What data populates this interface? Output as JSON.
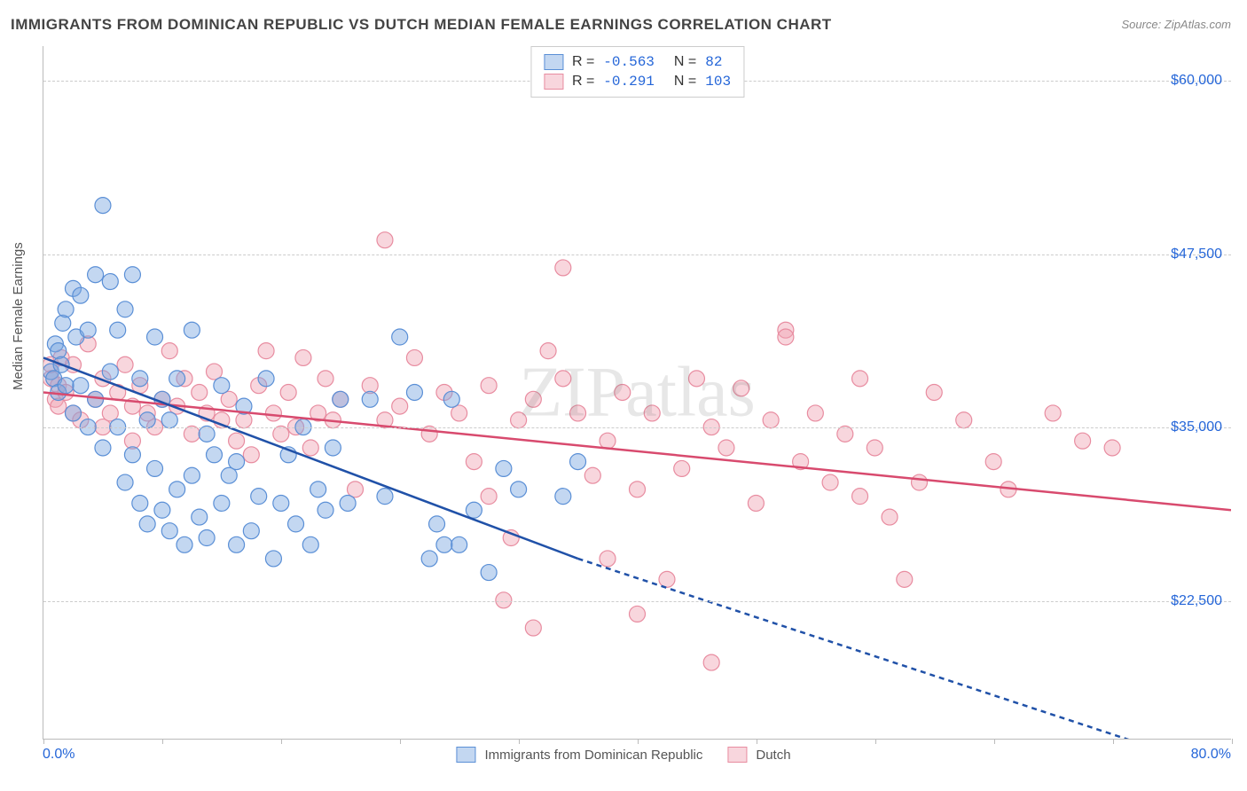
{
  "title": "IMMIGRANTS FROM DOMINICAN REPUBLIC VS DUTCH MEDIAN FEMALE EARNINGS CORRELATION CHART",
  "source": "Source: ZipAtlas.com",
  "y_axis_label": "Median Female Earnings",
  "watermark": "ZIPatlas",
  "chart": {
    "type": "scatter",
    "xlim": [
      0,
      80
    ],
    "ylim": [
      12500,
      62500
    ],
    "y_ticks": [
      22500,
      35000,
      47500,
      60000
    ],
    "y_tick_labels": [
      "$22,500",
      "$35,000",
      "$47,500",
      "$60,000"
    ],
    "x_ticks": [
      0,
      8,
      16,
      24,
      32,
      40,
      48,
      56,
      64,
      72,
      80
    ],
    "x_min_label": "0.0%",
    "x_max_label": "80.0%",
    "background_color": "#ffffff",
    "grid_color": "#cccccc",
    "axis_color": "#bbbbbb",
    "marker_radius": 9,
    "marker_opacity": 0.55,
    "line_width": 2.5
  },
  "series": [
    {
      "name": "Immigrants from Dominican Republic",
      "color": "#7ba7e0",
      "fill": "rgba(123,167,224,0.45)",
      "stroke": "#5a8fd6",
      "line_color": "#2051a8",
      "R": "-0.563",
      "N": "82",
      "trend": {
        "x1": 0,
        "y1": 40000,
        "x2": 36,
        "y2": 25500,
        "x2_ext": 80,
        "y2_ext": 10000
      },
      "points": [
        [
          0.5,
          39000
        ],
        [
          0.7,
          38500
        ],
        [
          0.8,
          41000
        ],
        [
          1,
          37500
        ],
        [
          1,
          40500
        ],
        [
          1.2,
          39500
        ],
        [
          1.3,
          42500
        ],
        [
          1.5,
          38000
        ],
        [
          1.5,
          43500
        ],
        [
          2,
          45000
        ],
        [
          2,
          36000
        ],
        [
          2.2,
          41500
        ],
        [
          2.5,
          38000
        ],
        [
          2.5,
          44500
        ],
        [
          3,
          42000
        ],
        [
          3,
          35000
        ],
        [
          3.5,
          46000
        ],
        [
          3.5,
          37000
        ],
        [
          4,
          51000
        ],
        [
          4,
          33500
        ],
        [
          4.5,
          45500
        ],
        [
          4.5,
          39000
        ],
        [
          5,
          35000
        ],
        [
          5,
          42000
        ],
        [
          5.5,
          31000
        ],
        [
          5.5,
          43500
        ],
        [
          6,
          33000
        ],
        [
          6,
          46000
        ],
        [
          6.5,
          29500
        ],
        [
          6.5,
          38500
        ],
        [
          7,
          28000
        ],
        [
          7,
          35500
        ],
        [
          7.5,
          32000
        ],
        [
          7.5,
          41500
        ],
        [
          8,
          29000
        ],
        [
          8,
          37000
        ],
        [
          8.5,
          35500
        ],
        [
          8.5,
          27500
        ],
        [
          9,
          30500
        ],
        [
          9,
          38500
        ],
        [
          9.5,
          26500
        ],
        [
          10,
          31500
        ],
        [
          10,
          42000
        ],
        [
          10.5,
          28500
        ],
        [
          11,
          34500
        ],
        [
          11,
          27000
        ],
        [
          11.5,
          33000
        ],
        [
          12,
          38000
        ],
        [
          12,
          29500
        ],
        [
          12.5,
          31500
        ],
        [
          13,
          26500
        ],
        [
          13,
          32500
        ],
        [
          13.5,
          36500
        ],
        [
          14,
          27500
        ],
        [
          14.5,
          30000
        ],
        [
          15,
          38500
        ],
        [
          15.5,
          25500
        ],
        [
          16,
          29500
        ],
        [
          16.5,
          33000
        ],
        [
          17,
          28000
        ],
        [
          17.5,
          35000
        ],
        [
          18,
          26500
        ],
        [
          18.5,
          30500
        ],
        [
          19,
          29000
        ],
        [
          19.5,
          33500
        ],
        [
          20,
          37000
        ],
        [
          20.5,
          29500
        ],
        [
          22,
          37000
        ],
        [
          23,
          30000
        ],
        [
          24,
          41500
        ],
        [
          25,
          37500
        ],
        [
          26,
          25500
        ],
        [
          26.5,
          28000
        ],
        [
          27,
          26500
        ],
        [
          27.5,
          37000
        ],
        [
          28,
          26500
        ],
        [
          29,
          29000
        ],
        [
          30,
          24500
        ],
        [
          31,
          32000
        ],
        [
          32,
          30500
        ],
        [
          35,
          30000
        ],
        [
          36,
          32500
        ]
      ]
    },
    {
      "name": "Dutch",
      "color": "#f0a4b4",
      "fill": "rgba(240,164,180,0.45)",
      "stroke": "#e88ca0",
      "line_color": "#d84a6e",
      "R": "-0.291",
      "N": "103",
      "trend": {
        "x1": 0,
        "y1": 37500,
        "x2": 80,
        "y2": 29000
      },
      "points": [
        [
          0.5,
          38500
        ],
        [
          0.5,
          39500
        ],
        [
          0.8,
          37000
        ],
        [
          1,
          38000
        ],
        [
          1,
          36500
        ],
        [
          1.2,
          40000
        ],
        [
          1.5,
          37500
        ],
        [
          2,
          36000
        ],
        [
          2,
          39500
        ],
        [
          2.5,
          35500
        ],
        [
          3,
          41000
        ],
        [
          3.5,
          37000
        ],
        [
          4,
          35000
        ],
        [
          4,
          38500
        ],
        [
          4.5,
          36000
        ],
        [
          5,
          37500
        ],
        [
          5.5,
          39500
        ],
        [
          6,
          36500
        ],
        [
          6,
          34000
        ],
        [
          6.5,
          38000
        ],
        [
          7,
          36000
        ],
        [
          7.5,
          35000
        ],
        [
          8,
          37000
        ],
        [
          8.5,
          40500
        ],
        [
          9,
          36500
        ],
        [
          9.5,
          38500
        ],
        [
          10,
          34500
        ],
        [
          10.5,
          37500
        ],
        [
          11,
          36000
        ],
        [
          11.5,
          39000
        ],
        [
          12,
          35500
        ],
        [
          12.5,
          37000
        ],
        [
          13,
          34000
        ],
        [
          13.5,
          35500
        ],
        [
          14,
          33000
        ],
        [
          14.5,
          38000
        ],
        [
          15,
          40500
        ],
        [
          15.5,
          36000
        ],
        [
          16,
          34500
        ],
        [
          16.5,
          37500
        ],
        [
          17,
          35000
        ],
        [
          17.5,
          40000
        ],
        [
          18,
          33500
        ],
        [
          18.5,
          36000
        ],
        [
          19,
          38500
        ],
        [
          19.5,
          35500
        ],
        [
          20,
          37000
        ],
        [
          21,
          30500
        ],
        [
          22,
          38000
        ],
        [
          23,
          48500
        ],
        [
          23,
          35500
        ],
        [
          24,
          36500
        ],
        [
          25,
          40000
        ],
        [
          26,
          34500
        ],
        [
          27,
          37500
        ],
        [
          28,
          36000
        ],
        [
          29,
          32500
        ],
        [
          30,
          38000
        ],
        [
          30,
          30000
        ],
        [
          31,
          22500
        ],
        [
          31.5,
          27000
        ],
        [
          32,
          35500
        ],
        [
          33,
          37000
        ],
        [
          33,
          20500
        ],
        [
          34,
          40500
        ],
        [
          35,
          46500
        ],
        [
          35,
          38500
        ],
        [
          36,
          36000
        ],
        [
          37,
          31500
        ],
        [
          38,
          34000
        ],
        [
          38,
          25500
        ],
        [
          39,
          37500
        ],
        [
          40,
          21500
        ],
        [
          40,
          30500
        ],
        [
          41,
          36000
        ],
        [
          42,
          24000
        ],
        [
          43,
          32000
        ],
        [
          44,
          38500
        ],
        [
          45,
          35000
        ],
        [
          45,
          18000
        ],
        [
          46,
          33500
        ],
        [
          47,
          37800
        ],
        [
          48,
          29500
        ],
        [
          49,
          35500
        ],
        [
          50,
          42000
        ],
        [
          50,
          41500
        ],
        [
          51,
          32500
        ],
        [
          52,
          36000
        ],
        [
          53,
          31000
        ],
        [
          54,
          34500
        ],
        [
          55,
          38500
        ],
        [
          55,
          30000
        ],
        [
          56,
          33500
        ],
        [
          57,
          28500
        ],
        [
          58,
          24000
        ],
        [
          59,
          31000
        ],
        [
          60,
          37500
        ],
        [
          62,
          35500
        ],
        [
          64,
          32500
        ],
        [
          65,
          30500
        ],
        [
          68,
          36000
        ],
        [
          70,
          34000
        ],
        [
          72,
          33500
        ]
      ]
    }
  ],
  "stats_box": {
    "R_label": "R =",
    "N_label": "N ="
  },
  "legend": {
    "series1_label": "Immigrants from Dominican Republic",
    "series2_label": "Dutch"
  }
}
